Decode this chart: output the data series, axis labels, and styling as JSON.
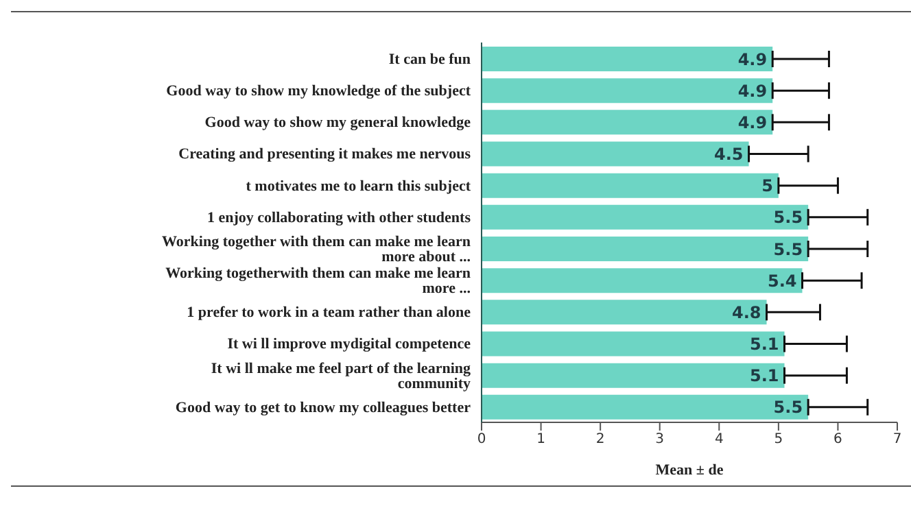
{
  "chart_data": {
    "type": "bar",
    "orientation": "horizontal",
    "xlabel": "Mean ± de",
    "categories": [
      "It can be fun",
      "Good way to show my knowledge of the subject",
      "Good way to show my general knowledge",
      "Creating and presenting it makes me nervous",
      "t motivates me to learn this subject",
      "1 enjoy collaborating with other students",
      "Working together with them can make me learn more about ...",
      "Working togetherwith them can make me learn more ...",
      "1 prefer to work in a team rather than alone",
      "It wi ll improve mydigital competence",
      "It wi ll make me feel part of the learning community",
      "Good way to get to know my colleagues better"
    ],
    "values": [
      4.9,
      4.9,
      4.9,
      4.5,
      5,
      5.5,
      5.5,
      5.4,
      4.8,
      5.1,
      5.1,
      5.5
    ],
    "errors": [
      [
        4.9,
        5.85
      ],
      [
        4.9,
        5.85
      ],
      [
        4.9,
        5.85
      ],
      [
        4.5,
        5.5
      ],
      [
        5,
        6
      ],
      [
        5.5,
        6.5
      ],
      [
        5.5,
        6.5
      ],
      [
        5.4,
        6.4
      ],
      [
        4.8,
        5.7
      ],
      [
        5.1,
        6.15
      ],
      [
        5.1,
        6.15
      ],
      [
        5.5,
        6.5
      ]
    ],
    "color": "#6dd5c4",
    "data_labels": true,
    "xlim": [
      0,
      7
    ],
    "xticks": [
      0,
      1,
      2,
      3,
      4,
      5,
      6,
      7
    ],
    "grid": false,
    "legend": false
  }
}
